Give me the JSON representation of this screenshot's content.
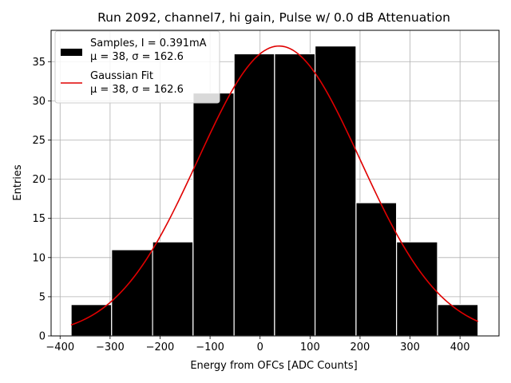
{
  "chart_data": {
    "type": "bar",
    "title": "Run 2092, channel7, hi gain, Pulse w/ 0.0 dB Attenuation",
    "xlabel": "Energy from OFCs [ADC Counts]",
    "ylabel": "Entries",
    "xlim": [
      -418,
      478
    ],
    "ylim": [
      0,
      39
    ],
    "xticks": [
      -400,
      -300,
      -200,
      -100,
      0,
      100,
      200,
      300,
      400
    ],
    "xtick_labels": [
      "−400",
      "−300",
      "−200",
      "−100",
      "0",
      "100",
      "200",
      "300",
      "400"
    ],
    "yticks": [
      0,
      5,
      10,
      15,
      20,
      25,
      30,
      35
    ],
    "ytick_labels": [
      "0",
      "5",
      "10",
      "15",
      "20",
      "25",
      "30",
      "35"
    ],
    "grid": true,
    "bin_edges": [
      -378,
      -297,
      -215,
      -134,
      -52,
      29,
      110,
      192,
      273,
      355,
      436
    ],
    "values": [
      4,
      11,
      12,
      31,
      36,
      36,
      37,
      17,
      12,
      4
    ],
    "bar_color": "#000000",
    "fit": {
      "mu": 38,
      "sigma": 162.6,
      "amplitude": 37,
      "x_range": [
        -378,
        436
      ],
      "color": "#e00000"
    },
    "legend": {
      "location": "upper left",
      "entries": [
        {
          "line1": "Samples, I = 0.391mA",
          "line2": "μ = 38, σ = 162.6"
        },
        {
          "line1": "Gaussian Fit",
          "line2": "μ = 38, σ = 162.6"
        }
      ]
    }
  }
}
